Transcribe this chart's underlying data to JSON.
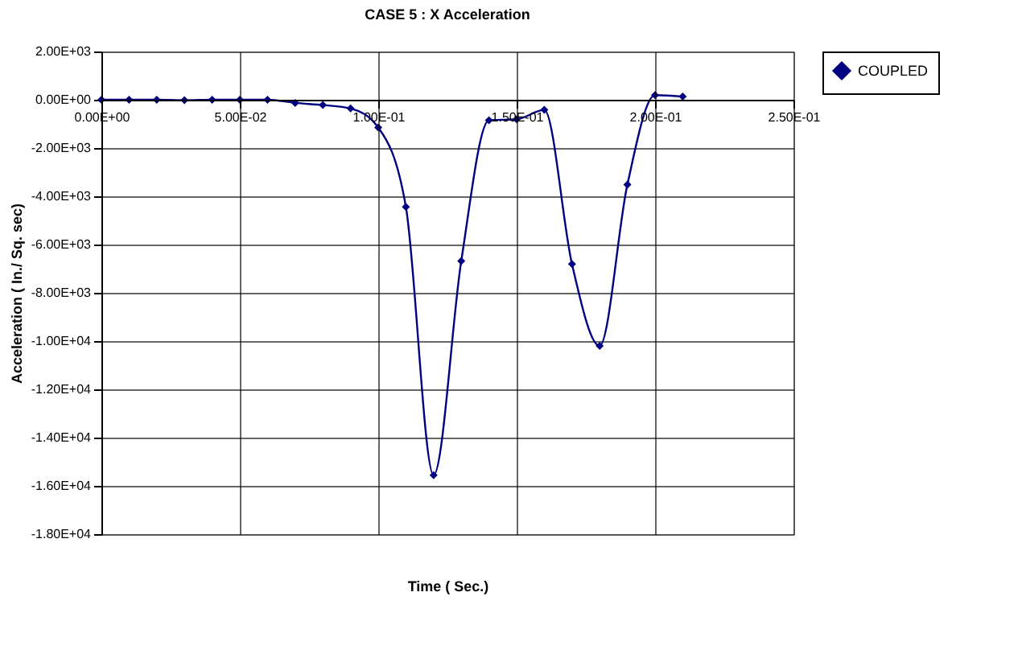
{
  "chart_data": {
    "type": "line",
    "title": "CASE 5 : X Acceleration",
    "xlabel": "Time ( Sec.)",
    "ylabel": "Acceleration ( In./ Sq. sec)",
    "x": [
      0,
      0.01,
      0.02,
      0.03,
      0.04,
      0.05,
      0.06,
      0.07,
      0.08,
      0.09,
      0.1,
      0.11,
      0.12,
      0.13,
      0.14,
      0.15,
      0.16,
      0.17,
      0.18,
      0.19,
      0.2,
      0.21
    ],
    "series": [
      {
        "name": "COUPLED",
        "color": "#000080",
        "values": [
          0,
          0,
          0,
          -20,
          0,
          0,
          0,
          -130,
          -220,
          -360,
          -1150,
          -4440,
          -15560,
          -6680,
          -850,
          -810,
          -420,
          -6810,
          -10200,
          -3520,
          190,
          130
        ]
      }
    ],
    "xlim": [
      0,
      0.25
    ],
    "xticks": [
      {
        "value": 0,
        "label": "0.00E+00"
      },
      {
        "value": 0.05,
        "label": "5.00E-02"
      },
      {
        "value": 0.1,
        "label": "1.00E-01"
      },
      {
        "value": 0.15,
        "label": "1.50E-01"
      },
      {
        "value": 0.2,
        "label": "2.00E-01"
      },
      {
        "value": 0.25,
        "label": "2.50E-01"
      }
    ],
    "ylim": [
      -18000,
      2000
    ],
    "yticks": [
      {
        "value": -18000,
        "label": "-1.80E+04"
      },
      {
        "value": -16000,
        "label": "-1.60E+04"
      },
      {
        "value": -14000,
        "label": "-1.40E+04"
      },
      {
        "value": -12000,
        "label": "-1.20E+04"
      },
      {
        "value": -10000,
        "label": "-1.00E+04"
      },
      {
        "value": -8000,
        "label": "-8.00E+03"
      },
      {
        "value": -6000,
        "label": "-6.00E+03"
      },
      {
        "value": -4000,
        "label": "-4.00E+03"
      },
      {
        "value": -2000,
        "label": "-2.00E+03"
      },
      {
        "value": 0,
        "label": "0.00E+00"
      },
      {
        "value": 2000,
        "label": "2.00E+03"
      }
    ],
    "grid": true,
    "legend": "right",
    "marker": "diamond",
    "line_style": "solid"
  }
}
